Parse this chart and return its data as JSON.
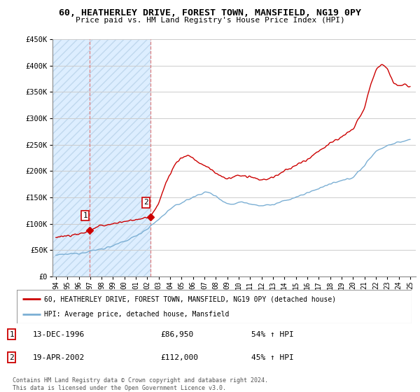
{
  "title": "60, HEATHERLEY DRIVE, FOREST TOWN, MANSFIELD, NG19 0PY",
  "subtitle": "Price paid vs. HM Land Registry's House Price Index (HPI)",
  "ylim": [
    0,
    450000
  ],
  "yticks": [
    0,
    50000,
    100000,
    150000,
    200000,
    250000,
    300000,
    350000,
    400000,
    450000
  ],
  "xlim_start": 1993.7,
  "xlim_end": 2025.5,
  "xticks": [
    1994,
    1995,
    1996,
    1997,
    1998,
    1999,
    2000,
    2001,
    2002,
    2003,
    2004,
    2005,
    2006,
    2007,
    2008,
    2009,
    2010,
    2011,
    2012,
    2013,
    2014,
    2015,
    2016,
    2017,
    2018,
    2019,
    2020,
    2021,
    2022,
    2023,
    2024,
    2025
  ],
  "hatch_region_start": 1993.7,
  "hatch_region_end": 2002.28,
  "sale1_x": 1996.96,
  "sale1_y": 86950,
  "sale2_x": 2002.28,
  "sale2_y": 112000,
  "red_line_color": "#cc0000",
  "blue_line_color": "#7bafd4",
  "hatch_color": "#ddeeff",
  "grid_color": "#cccccc",
  "legend_label_red": "60, HEATHERLEY DRIVE, FOREST TOWN, MANSFIELD, NG19 0PY (detached house)",
  "legend_label_blue": "HPI: Average price, detached house, Mansfield",
  "table_row1": [
    "1",
    "13-DEC-1996",
    "£86,950",
    "54% ↑ HPI"
  ],
  "table_row2": [
    "2",
    "19-APR-2002",
    "£112,000",
    "45% ↑ HPI"
  ],
  "footnote": "Contains HM Land Registry data © Crown copyright and database right 2024.\nThis data is licensed under the Open Government Licence v3.0."
}
